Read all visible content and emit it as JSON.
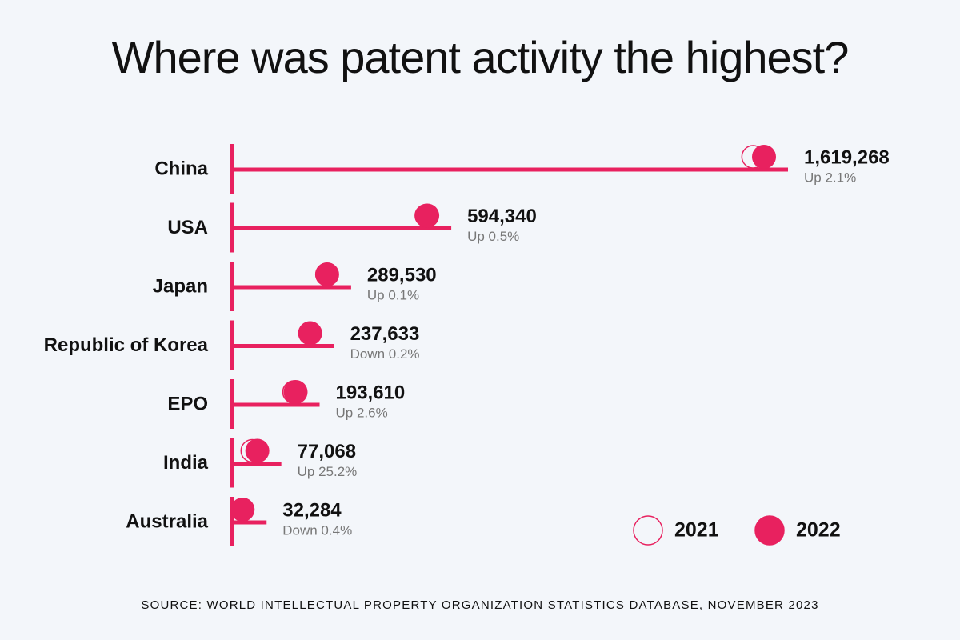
{
  "chart_data": {
    "type": "dot",
    "title": "Where was patent activity the highest?",
    "categories": [
      "China",
      "USA",
      "Japan",
      "Republic of Korea",
      "EPO",
      "India",
      "Australia"
    ],
    "series": [
      {
        "name": "2021",
        "color": "#e8215f",
        "filled": false,
        "values": [
          1585962,
          591383,
          289241,
          238109,
          188704,
          61556,
          32414
        ]
      },
      {
        "name": "2022",
        "color": "#e8215f",
        "filled": true,
        "values": [
          1619268,
          594340,
          289530,
          237633,
          193610,
          77068,
          32284
        ],
        "value_labels": [
          "1,619,268",
          "594,340",
          "289,530",
          "237,633",
          "193,610",
          "77,068",
          "32,284"
        ]
      }
    ],
    "changes": [
      "Up 2.1%",
      "Up 0.5%",
      "Up 0.1%",
      "Down 0.2%",
      "Up 2.6%",
      "Up 25.2%",
      "Down 0.4%"
    ],
    "source": "SOURCE:  WORLD INTELLECTUAL PROPERTY ORGANIZATION STATISTICS DATABASE, NOVEMBER 2023"
  }
}
